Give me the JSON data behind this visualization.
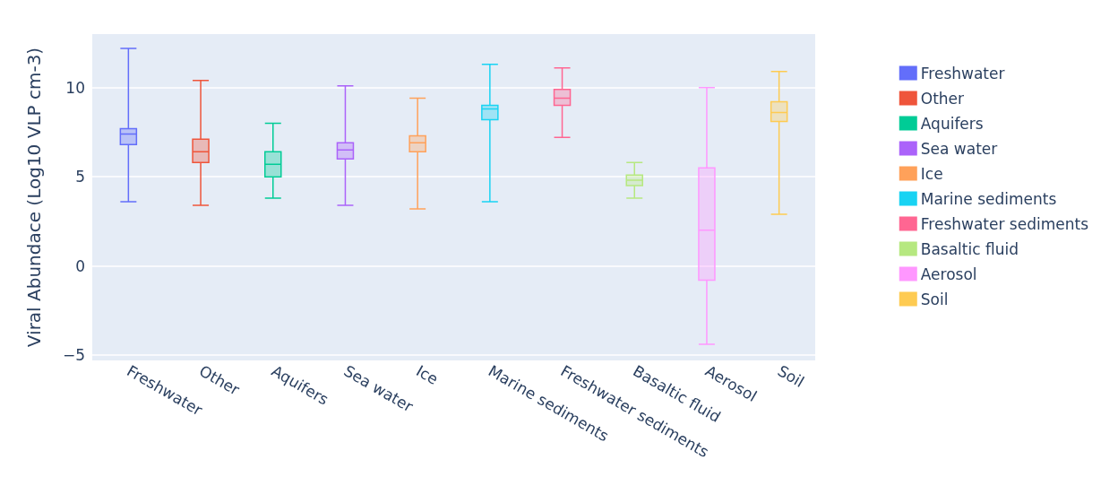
{
  "chart_data": {
    "type": "box",
    "ylabel": "Viral Abundace (Log10 VLP cm-3)",
    "categories": [
      "Freshwater",
      "Other",
      "Aquifers",
      "Sea water",
      "Ice",
      "Marine sediments",
      "Freshwater sediments",
      "Basaltic fluid",
      "Aerosol",
      "Soil"
    ],
    "series": [
      {
        "name": "Freshwater",
        "color": "#636efa",
        "boxes": [
          {
            "low": 3.6,
            "q1": 6.8,
            "median": 7.4,
            "q3": 7.7,
            "high": 12.2
          },
          null,
          null,
          null,
          null,
          null,
          null,
          null,
          null,
          null
        ]
      },
      {
        "name": "Other",
        "color": "#ef553b",
        "boxes": [
          null,
          {
            "low": 3.4,
            "q1": 5.8,
            "median": 6.4,
            "q3": 7.1,
            "high": 10.4
          },
          null,
          null,
          null,
          null,
          null,
          null,
          null,
          null
        ]
      },
      {
        "name": "Aquifers",
        "color": "#00cc96",
        "boxes": [
          null,
          null,
          {
            "low": 3.8,
            "q1": 5.0,
            "median": 5.7,
            "q3": 6.4,
            "high": 8.0
          },
          null,
          null,
          null,
          null,
          null,
          null,
          null
        ]
      },
      {
        "name": "Sea water",
        "color": "#ab63fa",
        "boxes": [
          null,
          null,
          null,
          {
            "low": 3.4,
            "q1": 6.0,
            "median": 6.5,
            "q3": 6.9,
            "high": 10.1
          },
          null,
          null,
          null,
          null,
          null,
          null
        ]
      },
      {
        "name": "Ice",
        "color": "#ffa15a",
        "boxes": [
          null,
          null,
          null,
          null,
          {
            "low": 3.2,
            "q1": 6.4,
            "median": 6.9,
            "q3": 7.3,
            "high": 9.4
          },
          null,
          null,
          null,
          null,
          null
        ]
      },
      {
        "name": "Marine sediments",
        "color": "#19d3f3",
        "boxes": [
          null,
          null,
          null,
          null,
          null,
          {
            "low": 3.6,
            "q1": 8.2,
            "median": 8.8,
            "q3": 9.0,
            "high": 11.3
          },
          null,
          null,
          null,
          null
        ]
      },
      {
        "name": "Freshwater sediments",
        "color": "#ff6692",
        "boxes": [
          null,
          null,
          null,
          null,
          null,
          null,
          {
            "low": 7.2,
            "q1": 9.0,
            "median": 9.4,
            "q3": 9.9,
            "high": 11.1
          },
          null,
          null,
          null
        ]
      },
      {
        "name": "Basaltic fluid",
        "color": "#b6e880",
        "boxes": [
          null,
          null,
          null,
          null,
          null,
          null,
          null,
          {
            "low": 3.8,
            "q1": 4.5,
            "median": 4.8,
            "q3": 5.1,
            "high": 5.8
          },
          null,
          null
        ]
      },
      {
        "name": "Aerosol",
        "color": "#ff97ff",
        "boxes": [
          null,
          null,
          null,
          null,
          null,
          null,
          null,
          null,
          {
            "low": -4.4,
            "q1": -0.8,
            "median": 2.0,
            "q3": 5.5,
            "high": 10.0
          },
          null
        ]
      },
      {
        "name": "Soil",
        "color": "#fecb52",
        "boxes": [
          null,
          null,
          null,
          null,
          null,
          null,
          null,
          null,
          null,
          {
            "low": 2.9,
            "q1": 8.1,
            "median": 8.6,
            "q3": 9.2,
            "high": 10.9
          }
        ]
      }
    ],
    "ylim": [
      -5.3,
      13
    ],
    "yticks": [
      -5,
      0,
      5,
      10
    ],
    "grid": "y",
    "legend": "right"
  }
}
